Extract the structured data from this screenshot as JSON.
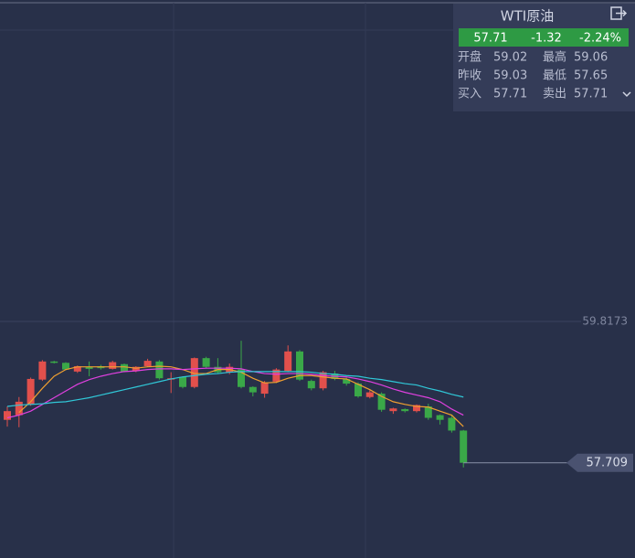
{
  "quote": {
    "title": "WTI原油",
    "price": "57.71",
    "change": "-1.32",
    "change_pct": "-2.24%",
    "rows": [
      [
        "开盘",
        "59.02",
        "最高",
        "59.06"
      ],
      [
        "昨收",
        "59.03",
        "最低",
        "57.65"
      ],
      [
        "买入",
        "57.71",
        "卖出",
        "57.71"
      ]
    ]
  },
  "chart_data": {
    "type": "candlestick",
    "ylim": [
      56.29,
      64.61
    ],
    "yticks": [
      59.8173
    ],
    "grid": true,
    "last_price": 57.709,
    "up_color": "#e2504c",
    "down_color": "#3aa848",
    "ohlc": [
      [
        58.35,
        58.55,
        58.25,
        58.48
      ],
      [
        58.42,
        58.69,
        58.24,
        58.62
      ],
      [
        58.58,
        58.98,
        58.56,
        58.96
      ],
      [
        58.95,
        59.24,
        58.93,
        59.22
      ],
      [
        59.22,
        59.23,
        59.19,
        59.2
      ],
      [
        59.2,
        59.21,
        59.09,
        59.1
      ],
      [
        59.07,
        59.16,
        59.05,
        59.15
      ],
      [
        59.14,
        59.22,
        59.0,
        59.11
      ],
      [
        59.15,
        59.17,
        59.1,
        59.12
      ],
      [
        59.11,
        59.23,
        59.1,
        59.21
      ],
      [
        59.18,
        59.19,
        59.06,
        59.07
      ],
      [
        59.08,
        59.15,
        59.06,
        59.14
      ],
      [
        59.15,
        59.26,
        59.14,
        59.23
      ],
      [
        59.22,
        59.24,
        58.95,
        58.97
      ],
      [
        58.95,
        59.06,
        58.75,
        58.97
      ],
      [
        58.99,
        59.0,
        58.82,
        58.84
      ],
      [
        58.84,
        59.28,
        58.82,
        59.27
      ],
      [
        59.27,
        59.29,
        59.12,
        59.14
      ],
      [
        59.14,
        59.27,
        59.04,
        59.06
      ],
      [
        59.06,
        59.19,
        59.03,
        59.14
      ],
      [
        59.1,
        59.53,
        58.82,
        58.84
      ],
      [
        58.84,
        58.85,
        58.7,
        58.76
      ],
      [
        58.74,
        58.93,
        58.68,
        58.91
      ],
      [
        58.92,
        59.12,
        58.9,
        59.1
      ],
      [
        59.08,
        59.46,
        59.06,
        59.37
      ],
      [
        59.37,
        59.39,
        58.93,
        58.95
      ],
      [
        58.93,
        58.95,
        58.79,
        58.82
      ],
      [
        58.82,
        59.08,
        58.79,
        59.06
      ],
      [
        59.04,
        59.08,
        58.94,
        58.96
      ],
      [
        58.96,
        58.98,
        58.86,
        58.89
      ],
      [
        58.89,
        58.91,
        58.68,
        58.7
      ],
      [
        58.69,
        58.79,
        58.67,
        58.76
      ],
      [
        58.74,
        58.76,
        58.47,
        58.5
      ],
      [
        58.48,
        58.53,
        58.44,
        58.52
      ],
      [
        58.51,
        58.52,
        58.46,
        58.48
      ],
      [
        58.48,
        58.58,
        58.46,
        58.57
      ],
      [
        58.55,
        58.59,
        58.35,
        58.38
      ],
      [
        58.42,
        58.43,
        58.28,
        58.35
      ],
      [
        58.38,
        58.43,
        58.16,
        58.19
      ],
      [
        58.19,
        58.2,
        57.64,
        57.71
      ]
    ],
    "ma_lines": [
      {
        "color": "#f0a030",
        "values": [
          null,
          58.46,
          58.62,
          58.82,
          59.0,
          59.1,
          59.14,
          59.14,
          59.14,
          59.14,
          59.14,
          59.12,
          59.14,
          59.15,
          59.14,
          59.1,
          59.04,
          59.04,
          59.1,
          59.1,
          59.06,
          58.97,
          58.9,
          58.91,
          58.97,
          59.01,
          59.01,
          58.99,
          58.97,
          58.96,
          58.88,
          58.8,
          58.7,
          58.62,
          58.58,
          58.55,
          58.54,
          58.48,
          58.42,
          58.25
        ]
      },
      {
        "color": "#e040e0",
        "values": [
          58.38,
          58.42,
          58.48,
          58.58,
          58.68,
          58.78,
          58.88,
          58.95,
          59.0,
          59.04,
          59.07,
          59.08,
          59.1,
          59.11,
          59.11,
          59.1,
          59.11,
          59.12,
          59.12,
          59.12,
          59.11,
          59.07,
          59.04,
          59.03,
          59.04,
          59.04,
          59.03,
          59.01,
          59.0,
          58.99,
          58.96,
          58.92,
          58.87,
          58.81,
          58.76,
          58.72,
          58.68,
          58.62,
          58.51,
          58.42
        ]
      },
      {
        "color": "#30c8d8",
        "values": [
          58.55,
          58.57,
          58.58,
          58.59,
          58.61,
          58.62,
          58.65,
          58.68,
          58.72,
          58.76,
          58.8,
          58.84,
          58.88,
          58.92,
          58.96,
          58.99,
          59.01,
          59.03,
          59.04,
          59.06,
          59.07,
          59.07,
          59.07,
          59.07,
          59.07,
          59.07,
          59.06,
          59.04,
          59.03,
          59.01,
          59.0,
          58.97,
          58.95,
          58.92,
          58.89,
          58.87,
          58.82,
          58.78,
          58.73,
          58.69
        ]
      }
    ]
  }
}
